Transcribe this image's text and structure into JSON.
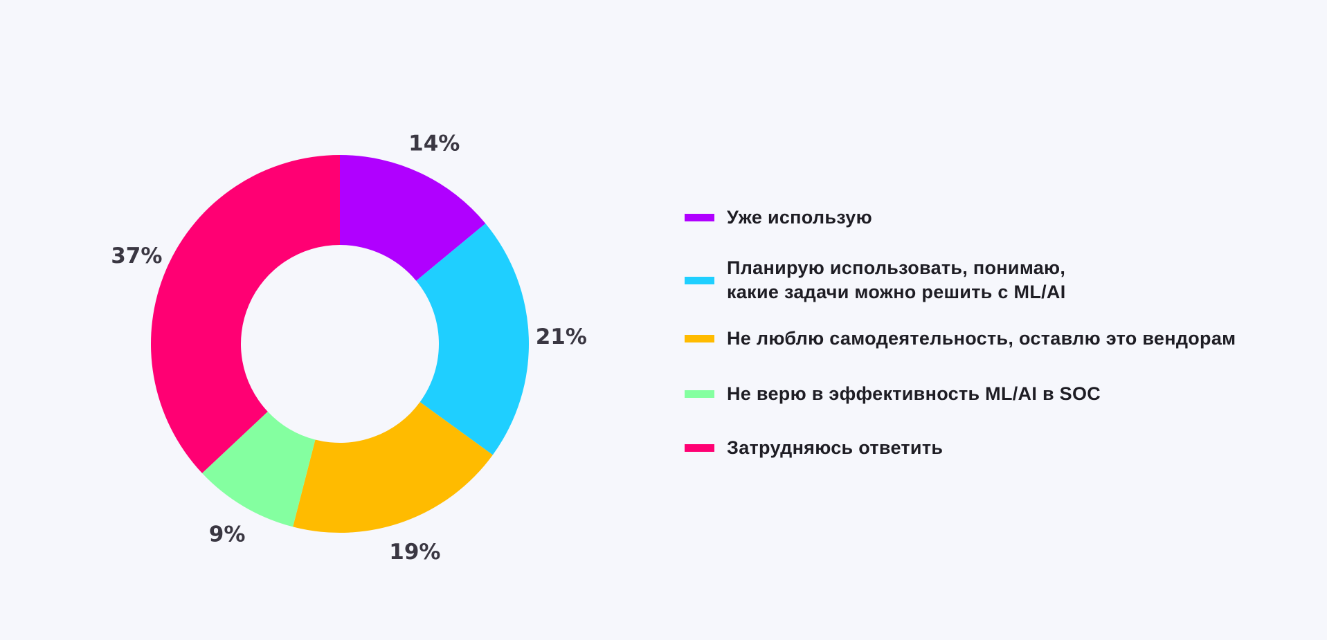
{
  "chart_data": {
    "type": "pie",
    "donut": true,
    "legend_position": "right",
    "start_angle": "12 o'clock, clockwise",
    "slices": [
      {
        "label": "Уже использую",
        "value": 14,
        "data_label": "14%",
        "color": "#b000ff"
      },
      {
        "label": "Планирую использовать, понимаю,\nкакие задачи можно решить с ML/AI",
        "label_lines": [
          "Планирую использовать, понимаю,",
          "какие задачи можно решить с ML/AI"
        ],
        "value": 21,
        "data_label": "21%",
        "color": "#1fcfff"
      },
      {
        "label": "Не люблю самодеятельность, оставлю это вендорам",
        "value": 19,
        "data_label": "19%",
        "color": "#ffbb00"
      },
      {
        "label": "Не верю в эффективность ML/AI в SOC",
        "value": 9,
        "data_label": "9%",
        "color": "#84ffa0"
      },
      {
        "label": "Затрудняюсь ответить",
        "value": 37,
        "data_label": "37%",
        "color": "#ff0073"
      }
    ]
  }
}
